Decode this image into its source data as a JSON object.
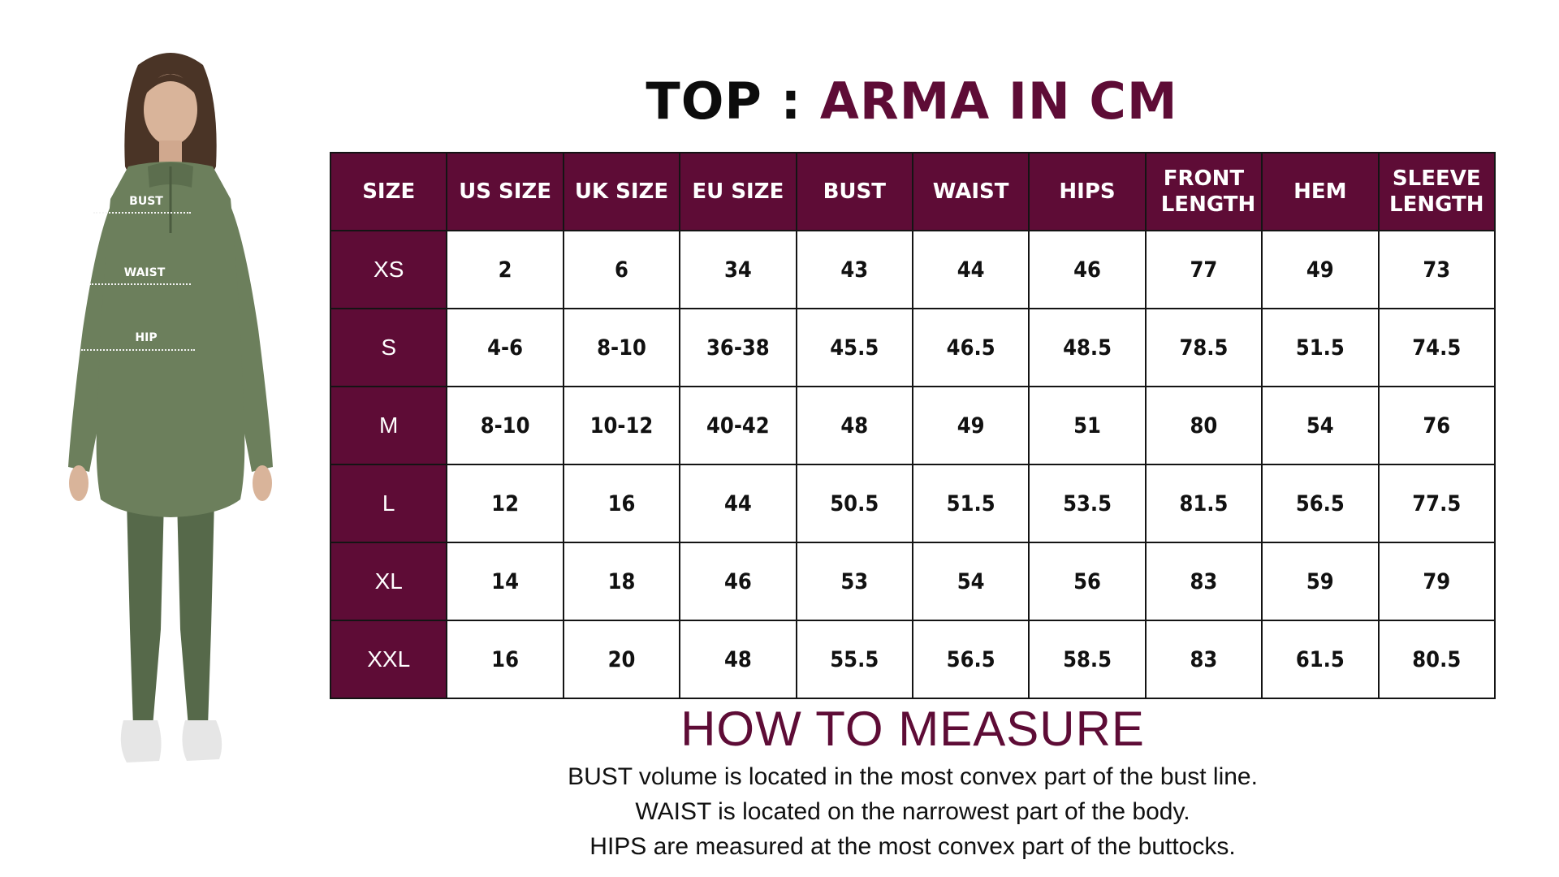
{
  "title": {
    "prefix": "TOP :",
    "product": "ARMA IN CM"
  },
  "figure": {
    "labels": {
      "bust": "BUST",
      "waist": "WAIST",
      "hip": "HIP"
    }
  },
  "table": {
    "headers": [
      "SIZE",
      "US SIZE",
      "UK SIZE",
      "EU SIZE",
      "BUST",
      "WAIST",
      "HIPS",
      "FRONT LENGTH",
      "HEM",
      "SLEEVE LENGTH"
    ],
    "rows": [
      [
        "XS",
        "2",
        "6",
        "34",
        "43",
        "44",
        "46",
        "77",
        "49",
        "73"
      ],
      [
        "S",
        "4-6",
        "8-10",
        "36-38",
        "45.5",
        "46.5",
        "48.5",
        "78.5",
        "51.5",
        "74.5"
      ],
      [
        "M",
        "8-10",
        "10-12",
        "40-42",
        "48",
        "49",
        "51",
        "80",
        "54",
        "76"
      ],
      [
        "L",
        "12",
        "16",
        "44",
        "50.5",
        "51.5",
        "53.5",
        "81.5",
        "56.5",
        "77.5"
      ],
      [
        "XL",
        "14",
        "18",
        "46",
        "53",
        "54",
        "56",
        "83",
        "59",
        "79"
      ],
      [
        "XXL",
        "16",
        "20",
        "48",
        "55.5",
        "56.5",
        "58.5",
        "83",
        "61.5",
        "80.5"
      ]
    ]
  },
  "how_to_measure": {
    "title": "HOW TO MEASURE",
    "lines": [
      "BUST volume is located in the most convex part of the bust line.",
      "WAIST is located on the narrowest part of the body.",
      "HIPS are measured at the most convex part of the buttocks."
    ]
  },
  "colors": {
    "accent": "#5e0c36",
    "garment": "#6c7f5c",
    "leggings": "#56694a"
  }
}
